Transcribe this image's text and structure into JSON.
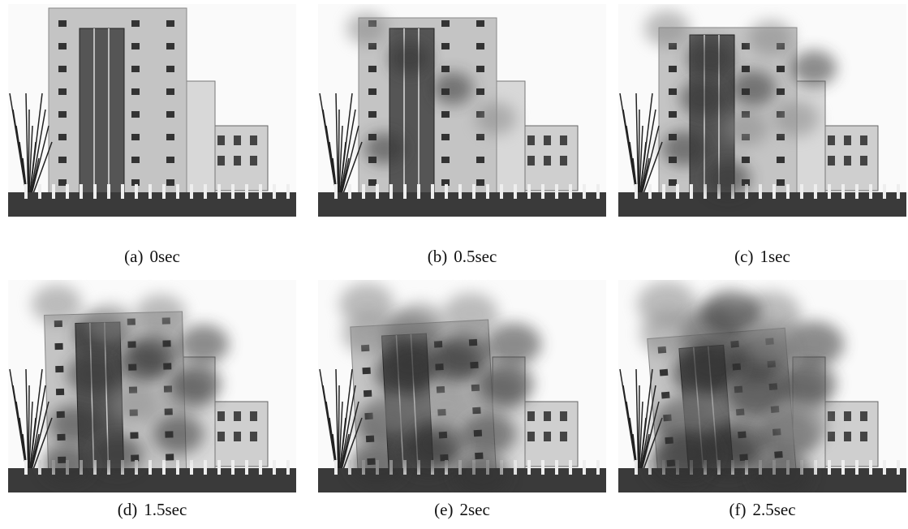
{
  "panels": [
    {
      "label": "(a)",
      "caption": "0sec"
    },
    {
      "label": "(b)",
      "caption": "0.5sec"
    },
    {
      "label": "(c)",
      "caption": "1sec"
    },
    {
      "label": "(d)",
      "caption": "1.5sec"
    },
    {
      "label": "(e)",
      "caption": "2sec"
    },
    {
      "label": "(f)",
      "caption": "2.5sec"
    }
  ]
}
